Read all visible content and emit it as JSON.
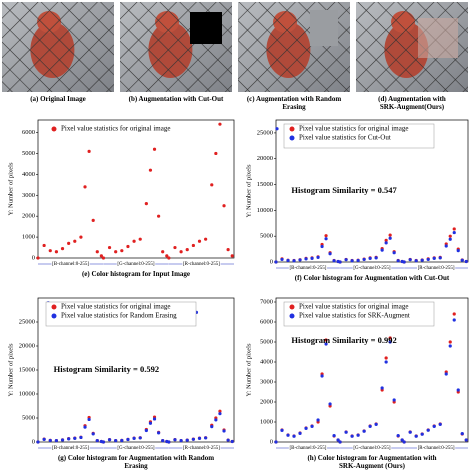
{
  "images": [
    {
      "caption": "(a) Original Image"
    },
    {
      "caption": "(b) Augmentation with Cut-Out"
    },
    {
      "caption": "(c) Augmentation with Random Erasing"
    },
    {
      "caption": "(d) Augmentation with SRK-Augment(Ours)"
    }
  ],
  "chart_data": [
    {
      "type": "scatter",
      "ylabel": "Y: Number of pixels",
      "caption": "(e) Color histogram for Input Image",
      "channel_labels": [
        "[B-channel:0-255]",
        "[G-channel:0-255]",
        "[R-channel:0-255]"
      ],
      "xlim": [
        0,
        767
      ],
      "ylim": [
        0,
        6600
      ],
      "yticks": [
        0,
        1000,
        2000,
        3000,
        4000,
        5000,
        6000
      ],
      "legend": "upper left",
      "series": [
        {
          "name": "Pixel value statistics for original image",
          "color": "#e02020",
          "x": [
            0,
            24,
            48,
            72,
            96,
            120,
            144,
            168,
            184,
            200,
            216,
            232,
            248,
            256,
            280,
            304,
            328,
            352,
            376,
            400,
            424,
            440,
            456,
            472,
            488,
            504,
            512,
            536,
            560,
            584,
            608,
            632,
            656,
            680,
            696,
            712,
            728,
            744,
            760
          ],
          "values": [
            0,
            600,
            350,
            300,
            450,
            700,
            800,
            1000,
            3400,
            5100,
            1800,
            300,
            100,
            0,
            500,
            300,
            350,
            550,
            800,
            900,
            2600,
            4200,
            5200,
            2000,
            300,
            100,
            0,
            500,
            300,
            400,
            600,
            800,
            900,
            3500,
            5000,
            6400,
            2500,
            400,
            100
          ]
        }
      ]
    },
    {
      "type": "scatter",
      "ylabel": "Y: Number of pixels",
      "caption": "(f) Color histogram for Augmentation with Cut-Out",
      "annotation": "Histogram Similarity = 0.547",
      "channel_labels": [
        "[B-channel:0-255]",
        "[G-channel:0-255]",
        "[R-channel:0-255]"
      ],
      "xlim": [
        0,
        767
      ],
      "ylim": [
        0,
        27500
      ],
      "yticks": [
        0,
        5000,
        10000,
        15000,
        20000,
        25000
      ],
      "legend": "upper left",
      "series": [
        {
          "name": "Pixel value statistics for original image",
          "color": "#e02020",
          "x": [
            0,
            24,
            48,
            72,
            96,
            120,
            144,
            168,
            184,
            200,
            216,
            232,
            248,
            256,
            280,
            304,
            328,
            352,
            376,
            400,
            424,
            440,
            456,
            472,
            488,
            504,
            512,
            536,
            560,
            584,
            608,
            632,
            656,
            680,
            696,
            712,
            728,
            744,
            760
          ],
          "values": [
            0,
            600,
            350,
            300,
            450,
            700,
            800,
            1000,
            3400,
            5100,
            1800,
            300,
            100,
            0,
            500,
            300,
            350,
            550,
            800,
            900,
            2600,
            4200,
            5200,
            2000,
            300,
            100,
            0,
            500,
            300,
            400,
            600,
            800,
            900,
            3500,
            5000,
            6400,
            2500,
            400,
            100
          ]
        },
        {
          "name": "Pixel value statistics for Cut-Out",
          "color": "#2030e0",
          "x": [
            0,
            24,
            48,
            72,
            96,
            120,
            144,
            168,
            184,
            200,
            216,
            232,
            248,
            256,
            280,
            304,
            328,
            352,
            376,
            400,
            424,
            440,
            456,
            472,
            488,
            504,
            512,
            536,
            560,
            584,
            608,
            632,
            656,
            680,
            696,
            712,
            728,
            744,
            760,
            4,
            260,
            516
          ],
          "values": [
            0,
            500,
            300,
            250,
            400,
            600,
            700,
            900,
            3000,
            4500,
            1600,
            250,
            100,
            0,
            450,
            250,
            300,
            500,
            700,
            800,
            2300,
            3700,
            4600,
            1800,
            250,
            100,
            0,
            450,
            250,
            350,
            500,
            700,
            800,
            3100,
            4400,
            5700,
            2200,
            350,
            100,
            25800,
            25800,
            25800
          ]
        }
      ]
    },
    {
      "type": "scatter",
      "ylabel": "Y: Number of pixels",
      "caption": "(g) Color histogram for Augmentation with Random Erasing",
      "annotation": "Histogram Similarity = 0.592",
      "channel_labels": [
        "[B-channel:0-255]",
        "[G-channel:0-255]",
        "[R-channel:0-255]"
      ],
      "xlim": [
        0,
        767
      ],
      "ylim": [
        0,
        30000
      ],
      "yticks": [
        0,
        5000,
        10000,
        15000,
        20000,
        25000
      ],
      "legend": "upper left",
      "series": [
        {
          "name": "Pixel value statistics for original image",
          "color": "#e02020",
          "x": [
            0,
            24,
            48,
            72,
            96,
            120,
            144,
            168,
            184,
            200,
            216,
            232,
            248,
            256,
            280,
            304,
            328,
            352,
            376,
            400,
            424,
            440,
            456,
            472,
            488,
            504,
            512,
            536,
            560,
            584,
            608,
            632,
            656,
            680,
            696,
            712,
            728,
            744,
            760
          ],
          "values": [
            0,
            600,
            350,
            300,
            450,
            700,
            800,
            1000,
            3400,
            5100,
            1800,
            300,
            100,
            0,
            500,
            300,
            350,
            550,
            800,
            900,
            2600,
            4200,
            5200,
            2000,
            300,
            100,
            0,
            500,
            300,
            400,
            600,
            800,
            900,
            3500,
            5000,
            6400,
            2500,
            400,
            100
          ]
        },
        {
          "name": "Pixel value statistics for Random Erasing",
          "color": "#2030e0",
          "x": [
            0,
            24,
            48,
            72,
            96,
            120,
            144,
            168,
            184,
            200,
            216,
            232,
            248,
            256,
            280,
            304,
            328,
            352,
            376,
            400,
            424,
            440,
            456,
            472,
            488,
            504,
            512,
            536,
            560,
            584,
            608,
            632,
            656,
            680,
            696,
            712,
            728,
            744,
            760,
            40,
            390,
            620
          ],
          "values": [
            0,
            550,
            320,
            280,
            420,
            650,
            750,
            950,
            3100,
            4700,
            1700,
            280,
            100,
            0,
            480,
            280,
            320,
            520,
            750,
            850,
            2400,
            3900,
            4800,
            1900,
            280,
            100,
            0,
            480,
            280,
            370,
            560,
            750,
            850,
            3200,
            4600,
            5900,
            2300,
            380,
            100,
            29000,
            27800,
            27000
          ]
        }
      ]
    },
    {
      "type": "scatter",
      "ylabel": "Y: Number of pixels",
      "caption": "(h) Color histogram for Augmentation with SRK-Augment (Ours)",
      "annotation": "Histogram Similarity = 0.992",
      "channel_labels": [
        "[B-channel:0-255]",
        "[G-channel:0-255]",
        "[R-channel:0-255]"
      ],
      "xlim": [
        0,
        767
      ],
      "ylim": [
        0,
        7200
      ],
      "yticks": [
        0,
        1000,
        2000,
        3000,
        4000,
        5000,
        6000,
        7000
      ],
      "legend": "upper left",
      "series": [
        {
          "name": "Pixel value statistics for original image",
          "color": "#e02020",
          "x": [
            0,
            24,
            48,
            72,
            96,
            120,
            144,
            168,
            184,
            200,
            216,
            232,
            248,
            256,
            280,
            304,
            328,
            352,
            376,
            400,
            424,
            440,
            456,
            472,
            488,
            504,
            512,
            536,
            560,
            584,
            608,
            632,
            656,
            680,
            696,
            712,
            728,
            744,
            760
          ],
          "values": [
            0,
            600,
            350,
            300,
            450,
            700,
            800,
            1000,
            3400,
            5100,
            1800,
            300,
            100,
            0,
            500,
            300,
            350,
            550,
            800,
            900,
            2600,
            4200,
            5200,
            2000,
            300,
            100,
            0,
            500,
            300,
            400,
            600,
            800,
            900,
            3500,
            5000,
            6400,
            2500,
            400,
            100
          ]
        },
        {
          "name": "Pixel value statistics for SRK-Augment",
          "color": "#2030e0",
          "x": [
            0,
            24,
            48,
            72,
            96,
            120,
            144,
            168,
            184,
            200,
            216,
            232,
            248,
            256,
            280,
            304,
            328,
            352,
            376,
            400,
            424,
            440,
            456,
            472,
            488,
            504,
            512,
            536,
            560,
            584,
            608,
            632,
            656,
            680,
            696,
            712,
            728,
            744,
            760
          ],
          "values": [
            0,
            580,
            340,
            290,
            430,
            680,
            780,
            1100,
            3300,
            4900,
            1900,
            320,
            100,
            0,
            490,
            290,
            340,
            540,
            780,
            880,
            2700,
            4000,
            5000,
            2100,
            320,
            100,
            0,
            490,
            290,
            390,
            590,
            780,
            880,
            3400,
            4800,
            6100,
            2600,
            420,
            100
          ]
        }
      ]
    }
  ]
}
